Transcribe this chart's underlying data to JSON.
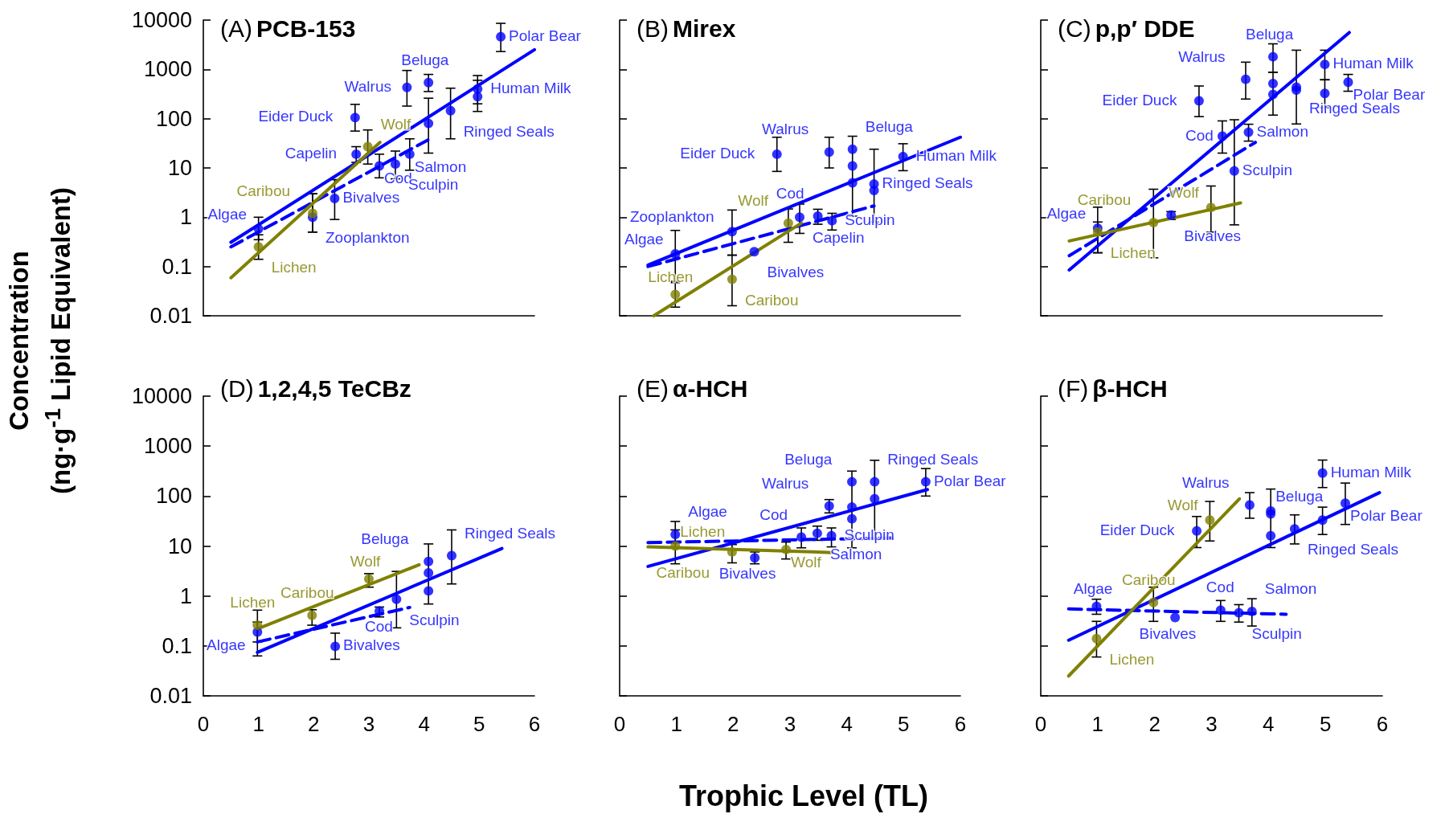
{
  "chart_data": [
    {
      "type": "scatter",
      "title": "(A) PCB-153",
      "ylabel": "Concentration\n(ng·g$^{-1}$ Lipid Equivalent)",
      "xlim": [
        0,
        6
      ],
      "xticks": [
        0,
        1,
        2,
        3,
        4,
        5,
        6
      ],
      "ylim": [
        0.01,
        10000
      ],
      "yticks": [
        0.01,
        0.1,
        1,
        10,
        100,
        1000,
        10000
      ],
      "log": "y",
      "tick_labels": "y",
      "marker": "circle",
      "series": [
        {
          "color": "#0000ff",
          "x": [
            1.0,
            1.98,
            2.38,
            2.77,
            2.75,
            3.19,
            3.48,
            3.74,
            3.69,
            4.08,
            4.08,
            4.48,
            4.97,
            4.97,
            5.39
          ],
          "values": [
            0.58,
            1.0,
            2.4,
            19,
            105,
            11,
            12,
            19,
            430,
            540,
            80,
            145,
            400,
            280,
            4600
          ],
          "errors": [
            [
              0.35,
              1.0
            ],
            [
              0.5,
              3.0
            ],
            [
              0.9,
              5.8
            ],
            [
              13,
              27
            ],
            [
              56,
              195
            ],
            [
              6.3,
              19
            ],
            [
              6,
              22
            ],
            [
              9,
              39
            ],
            [
              180,
              950
            ],
            [
              355,
              790
            ],
            [
              20,
              260
            ],
            [
              39,
              415
            ],
            [
              200,
              750
            ],
            [
              140,
              600
            ],
            [
              2300,
              8600
            ]
          ],
          "value_labels": [
            "Algae",
            "Zooplankton",
            "Bivalves",
            "Capelin",
            "Eider Duck",
            "Cod",
            "Sculpin",
            "Salmon",
            "Walrus",
            "Beluga",
            null,
            "Ringed Seals",
            "Human Milk",
            null,
            "Polar Bear"
          ]
        },
        {
          "color": "#808000",
          "x": [
            1.0,
            1.98,
            2.98
          ],
          "values": [
            0.25,
            1.2,
            27
          ],
          "errors": [
            [
              0.14,
              0.44
            ],
            [
              0.5,
              3.0
            ],
            [
              12,
              59
            ]
          ],
          "value_labels": [
            "Lichen",
            "Caribou",
            "Wolf"
          ]
        },
        {
          "type": "line",
          "marker": "none",
          "color": "#0000ff",
          "x": [
            0.5,
            6.0
          ],
          "values": [
            0.31,
            2500
          ]
        },
        {
          "type": "line",
          "marker": "none",
          "line_style": "dashed",
          "color": "#0000ff",
          "x": [
            0.5,
            4.07
          ],
          "values": [
            0.25,
            37
          ]
        },
        {
          "type": "line",
          "marker": "none",
          "color": "#808000",
          "x": [
            0.5,
            3.2
          ],
          "values": [
            0.059,
            33
          ]
        }
      ]
    },
    {
      "type": "scatter",
      "title": "(B) Mirex",
      "xlim": [
        0,
        6
      ],
      "xticks": [
        0,
        1,
        2,
        3,
        4,
        5,
        6
      ],
      "ylim": [
        0.01,
        10000
      ],
      "yticks": [
        0.01,
        0.1,
        1,
        10,
        100,
        1000,
        10000
      ],
      "log": "y",
      "tick_labels": false,
      "marker": "circle",
      "series": [
        {
          "color": "#0000ff",
          "x": [
            0.98,
            1.98,
            2.37,
            2.77,
            3.17,
            3.49,
            3.74,
            3.69,
            4.1,
            4.1,
            4.1,
            4.48,
            4.48,
            4.99
          ],
          "values": [
            0.18,
            0.51,
            0.2,
            19,
            1.0,
            1.05,
            0.85,
            21,
            24,
            11,
            5,
            4.7,
            3.5,
            17
          ],
          "errors": [
            [
              0.05,
              0.54
            ],
            [
              0.17,
              1.4
            ],
            null,
            [
              8.5,
              42
            ],
            [
              0.47,
              1.85
            ],
            [
              0.72,
              1.45
            ],
            [
              0.55,
              1.2
            ],
            [
              10,
              42
            ],
            [
              1.05,
              44
            ],
            null,
            null,
            [
              0.8,
              24
            ],
            null,
            [
              8.8,
              31
            ]
          ],
          "value_labels": [
            "Algae",
            "Zooplankton",
            "Bivalves",
            "Eider Duck",
            "Capelin",
            "Cod",
            "Sculpin",
            "Walrus",
            "Beluga",
            null,
            null,
            "Ringed Seals",
            null,
            "Human Milk"
          ]
        },
        {
          "color": "#808000",
          "x": [
            0.98,
            1.98,
            2.97
          ],
          "values": [
            0.027,
            0.055,
            0.76
          ],
          "errors": [
            [
              0.015,
              0.047
            ],
            [
              0.016,
              0.17
            ],
            [
              0.31,
              1.47
            ]
          ],
          "value_labels": [
            "Lichen",
            "Caribou",
            "Wolf"
          ]
        },
        {
          "type": "line",
          "marker": "none",
          "color": "#0000ff",
          "x": [
            0.5,
            6.0
          ],
          "values": [
            0.107,
            42
          ]
        },
        {
          "type": "line",
          "marker": "none",
          "line_style": "dashed",
          "color": "#0000ff",
          "x": [
            0.5,
            4.48
          ],
          "values": [
            0.1,
            1.7
          ]
        },
        {
          "type": "line",
          "marker": "none",
          "color": "#808000",
          "x": [
            0.6,
            3.2
          ],
          "values": [
            0.01,
            0.76
          ]
        }
      ]
    },
    {
      "type": "scatter",
      "title": "(C) p,p′ DDE",
      "xlim": [
        0,
        6
      ],
      "xticks": [
        0,
        1,
        2,
        3,
        4,
        5,
        6
      ],
      "ylim": [
        0.01,
        10000
      ],
      "yticks": [
        0.01,
        0.1,
        1,
        10,
        100,
        1000,
        10000
      ],
      "log": "y",
      "tick_labels": false,
      "marker": "circle",
      "series": [
        {
          "color": "#0000ff",
          "x": [
            1.0,
            2.29,
            2.78,
            3.19,
            3.4,
            3.65,
            3.6,
            4.08,
            4.08,
            4.08,
            4.49,
            4.49,
            4.99,
            4.99,
            5.4
          ],
          "values": [
            0.6,
            1.1,
            230,
            44,
            8.7,
            53,
            630,
            1800,
            515,
            310,
            435,
            380,
            1260,
            325,
            550
          ],
          "errors": [
            [
              0.19,
              1.6
            ],
            [
              0.9,
              1.3
            ],
            [
              110,
              460
            ],
            [
              20,
              90
            ],
            [
              0.7,
              95
            ],
            [
              35,
              77
            ],
            [
              250,
              1400
            ],
            [
              870,
              3300
            ],
            [
              118,
              870
            ],
            null,
            [
              78,
              2450
            ],
            null,
            [
              615,
              2450
            ],
            [
              167,
              615
            ],
            [
              360,
              790
            ]
          ],
          "value_labels": [
            "Algae",
            "Bivalves",
            "Eider Duck",
            "Cod",
            "Sculpin",
            "Salmon",
            "Walrus",
            "Beluga",
            null,
            null,
            "Ringed Seals",
            null,
            "Human Milk",
            null,
            "Polar Bear"
          ]
        },
        {
          "color": "#808000",
          "x": [
            1.0,
            1.98,
            2.99
          ],
          "values": [
            0.5,
            0.78,
            1.58
          ],
          "errors": [
            [
              0.19,
              0.8
            ],
            [
              0.15,
              3.7
            ],
            [
              0.5,
              4.3
            ]
          ],
          "value_labels": [
            "Lichen",
            "Caribou",
            "Wolf"
          ]
        },
        {
          "type": "line",
          "marker": "none",
          "color": "#0000ff",
          "x": [
            0.5,
            5.42
          ],
          "values": [
            0.085,
            5600
          ]
        },
        {
          "type": "line",
          "marker": "none",
          "line_style": "dashed",
          "color": "#0000ff",
          "x": [
            0.5,
            3.77
          ],
          "values": [
            0.166,
            33
          ]
        },
        {
          "type": "line",
          "marker": "none",
          "color": "#808000",
          "x": [
            0.5,
            3.51
          ],
          "values": [
            0.33,
            1.95
          ]
        }
      ]
    },
    {
      "type": "scatter",
      "title": "(D) 1,2,4,5 TeCBz",
      "xlim": [
        0,
        6
      ],
      "xticks": [
        0,
        1,
        2,
        3,
        4,
        5,
        6
      ],
      "ylim": [
        0.01,
        10000
      ],
      "yticks": [
        0.01,
        0.1,
        1,
        10,
        100,
        1000,
        10000
      ],
      "log": "y",
      "marker": "circle",
      "series": [
        {
          "color": "#0000ff",
          "x": [
            0.98,
            2.39,
            3.19,
            3.5,
            4.08,
            4.08,
            4.08,
            4.5
          ],
          "values": [
            0.19,
            0.098,
            0.5,
            0.86,
            4.9,
            2.9,
            1.26,
            6.4
          ],
          "errors": [
            [
              0.063,
              0.3
            ],
            [
              0.054,
              0.18
            ],
            [
              0.38,
              0.6
            ],
            [
              0.23,
              3.1
            ],
            [
              0.69,
              11
            ],
            null,
            null,
            [
              1.74,
              21
            ]
          ],
          "value_labels": [
            "Algae",
            "Bivalves",
            "Cod",
            "Sculpin",
            "Beluga",
            null,
            null,
            "Ringed Seals"
          ]
        },
        {
          "color": "#808000",
          "x": [
            0.98,
            1.97,
            3.0
          ],
          "values": [
            0.26,
            0.41,
            2.2
          ],
          "errors": [
            [
              0.12,
              0.52
            ],
            [
              0.26,
              0.53
            ],
            [
              1.5,
              2.8
            ]
          ],
          "value_labels": [
            "Lichen",
            "Caribou",
            "Wolf"
          ]
        },
        {
          "type": "line",
          "marker": "none",
          "color": "#0000ff",
          "x": [
            0.98,
            5.41
          ],
          "values": [
            0.074,
            8.9
          ]
        },
        {
          "type": "line",
          "marker": "none",
          "line_style": "dashed",
          "color": "#0000ff",
          "x": [
            0.98,
            3.74
          ],
          "values": [
            0.12,
            0.59
          ]
        },
        {
          "type": "line",
          "marker": "none",
          "color": "#808000",
          "x": [
            0.98,
            3.91
          ],
          "values": [
            0.22,
            4.2
          ]
        }
      ]
    },
    {
      "type": "scatter",
      "title": "(E) α-HCH",
      "xlabel": "Trophic Level (TL)",
      "xlim": [
        0,
        6
      ],
      "xticks": [
        0,
        1,
        2,
        3,
        4,
        5,
        6
      ],
      "ylim": [
        0.01,
        10000
      ],
      "yticks": [
        0.01,
        0.1,
        1,
        10,
        100,
        1000,
        10000
      ],
      "log": "y",
      "tick_labels": "x",
      "marker": "circle",
      "series": [
        {
          "color": "#0000ff",
          "x": [
            0.98,
            2.38,
            3.2,
            3.48,
            3.73,
            3.69,
            4.09,
            4.09,
            4.09,
            4.49,
            4.49,
            5.39
          ],
          "values": [
            17,
            5.8,
            15,
            18,
            16,
            63,
            193,
            60,
            35,
            193,
            88,
            193
          ],
          "errors": [
            [
              12,
              31
            ],
            [
              4.4,
              7.6
            ],
            [
              9.2,
              23
            ],
            [
              13,
              25
            ],
            [
              9.6,
              23
            ],
            [
              46,
              85
            ],
            [
              9.2,
              316
            ],
            null,
            null,
            [
              13.5,
              520
            ],
            null,
            [
              100,
              355
            ]
          ],
          "value_labels": [
            "Algae",
            "Bivalves",
            "Cod",
            "Salmon",
            "Sculpin",
            "Walrus",
            "Beluga",
            null,
            null,
            "Ringed Seals",
            null,
            "Polar Bear"
          ]
        },
        {
          "color": "#808000",
          "x": [
            0.98,
            1.98,
            2.93
          ],
          "values": [
            10,
            7.6,
            8.5
          ],
          "errors": [
            [
              4.4,
              21
            ],
            [
              4.6,
              10.7
            ],
            [
              5.5,
              12
            ]
          ],
          "value_labels": [
            "Lichen",
            "Caribou",
            "Wolf"
          ]
        },
        {
          "type": "line",
          "marker": "none",
          "color": "#0000ff",
          "x": [
            0.5,
            5.42
          ],
          "values": [
            3.9,
            135
          ]
        },
        {
          "type": "line",
          "marker": "none",
          "line_style": "dashed",
          "color": "#0000ff",
          "x": [
            0.5,
            4.82
          ],
          "values": [
            11.7,
            14.5
          ]
        },
        {
          "type": "line",
          "marker": "none",
          "color": "#808000",
          "x": [
            0.5,
            3.75
          ],
          "values": [
            9.6,
            7.4
          ]
        }
      ]
    },
    {
      "type": "scatter",
      "title": "(F) β-HCH",
      "xlim": [
        0,
        6
      ],
      "xticks": [
        0,
        1,
        2,
        3,
        4,
        5,
        6
      ],
      "ylim": [
        0.01,
        10000
      ],
      "yticks": [
        0.01,
        0.1,
        1,
        10,
        100,
        1000,
        10000
      ],
      "log": "y",
      "tick_labels": "x",
      "marker": "circle",
      "series": [
        {
          "color": "#0000ff",
          "x": [
            0.98,
            2.36,
            3.16,
            3.48,
            3.71,
            2.74,
            3.67,
            4.04,
            4.04,
            4.04,
            4.46,
            4.95,
            4.95,
            5.35
          ],
          "values": [
            0.62,
            0.37,
            0.52,
            0.46,
            0.49,
            20,
            66,
            50,
            44,
            16,
            22,
            33,
            288,
            72
          ],
          "errors": [
            [
              0.43,
              0.86
            ],
            null,
            [
              0.31,
              0.81
            ],
            [
              0.3,
              0.67
            ],
            [
              0.25,
              0.88
            ],
            [
              9.3,
              39
            ],
            [
              36,
              117
            ],
            [
              9.3,
              138
            ],
            null,
            null,
            [
              11,
              42
            ],
            [
              17,
              60
            ],
            [
              148,
              525
            ],
            [
              27,
              182
            ]
          ],
          "value_labels": [
            "Algae",
            "Bivalves",
            "Cod",
            "Sculpin",
            "Salmon",
            "Eider Duck",
            "Walrus",
            "Beluga",
            null,
            null,
            "Ringed Seals",
            null,
            "Human Milk",
            "Polar Bear"
          ]
        },
        {
          "color": "#808000",
          "x": [
            0.98,
            1.98,
            2.97
          ],
          "values": [
            0.14,
            0.74,
            33
          ],
          "errors": [
            [
              0.06,
              0.31
            ],
            [
              0.31,
              1.5
            ],
            [
              12.6,
              78
            ]
          ],
          "value_labels": [
            "Lichen",
            "Caribou",
            "Wolf"
          ]
        },
        {
          "type": "line",
          "marker": "none",
          "color": "#0000ff",
          "x": [
            0.49,
            5.95
          ],
          "values": [
            0.13,
            117
          ]
        },
        {
          "type": "line",
          "marker": "none",
          "line_style": "dashed",
          "color": "#0000ff",
          "x": [
            0.49,
            4.31
          ],
          "values": [
            0.55,
            0.43
          ]
        },
        {
          "type": "line",
          "marker": "none",
          "color": "#808000",
          "x": [
            0.49,
            3.49
          ],
          "values": [
            0.025,
            88
          ]
        }
      ]
    }
  ]
}
